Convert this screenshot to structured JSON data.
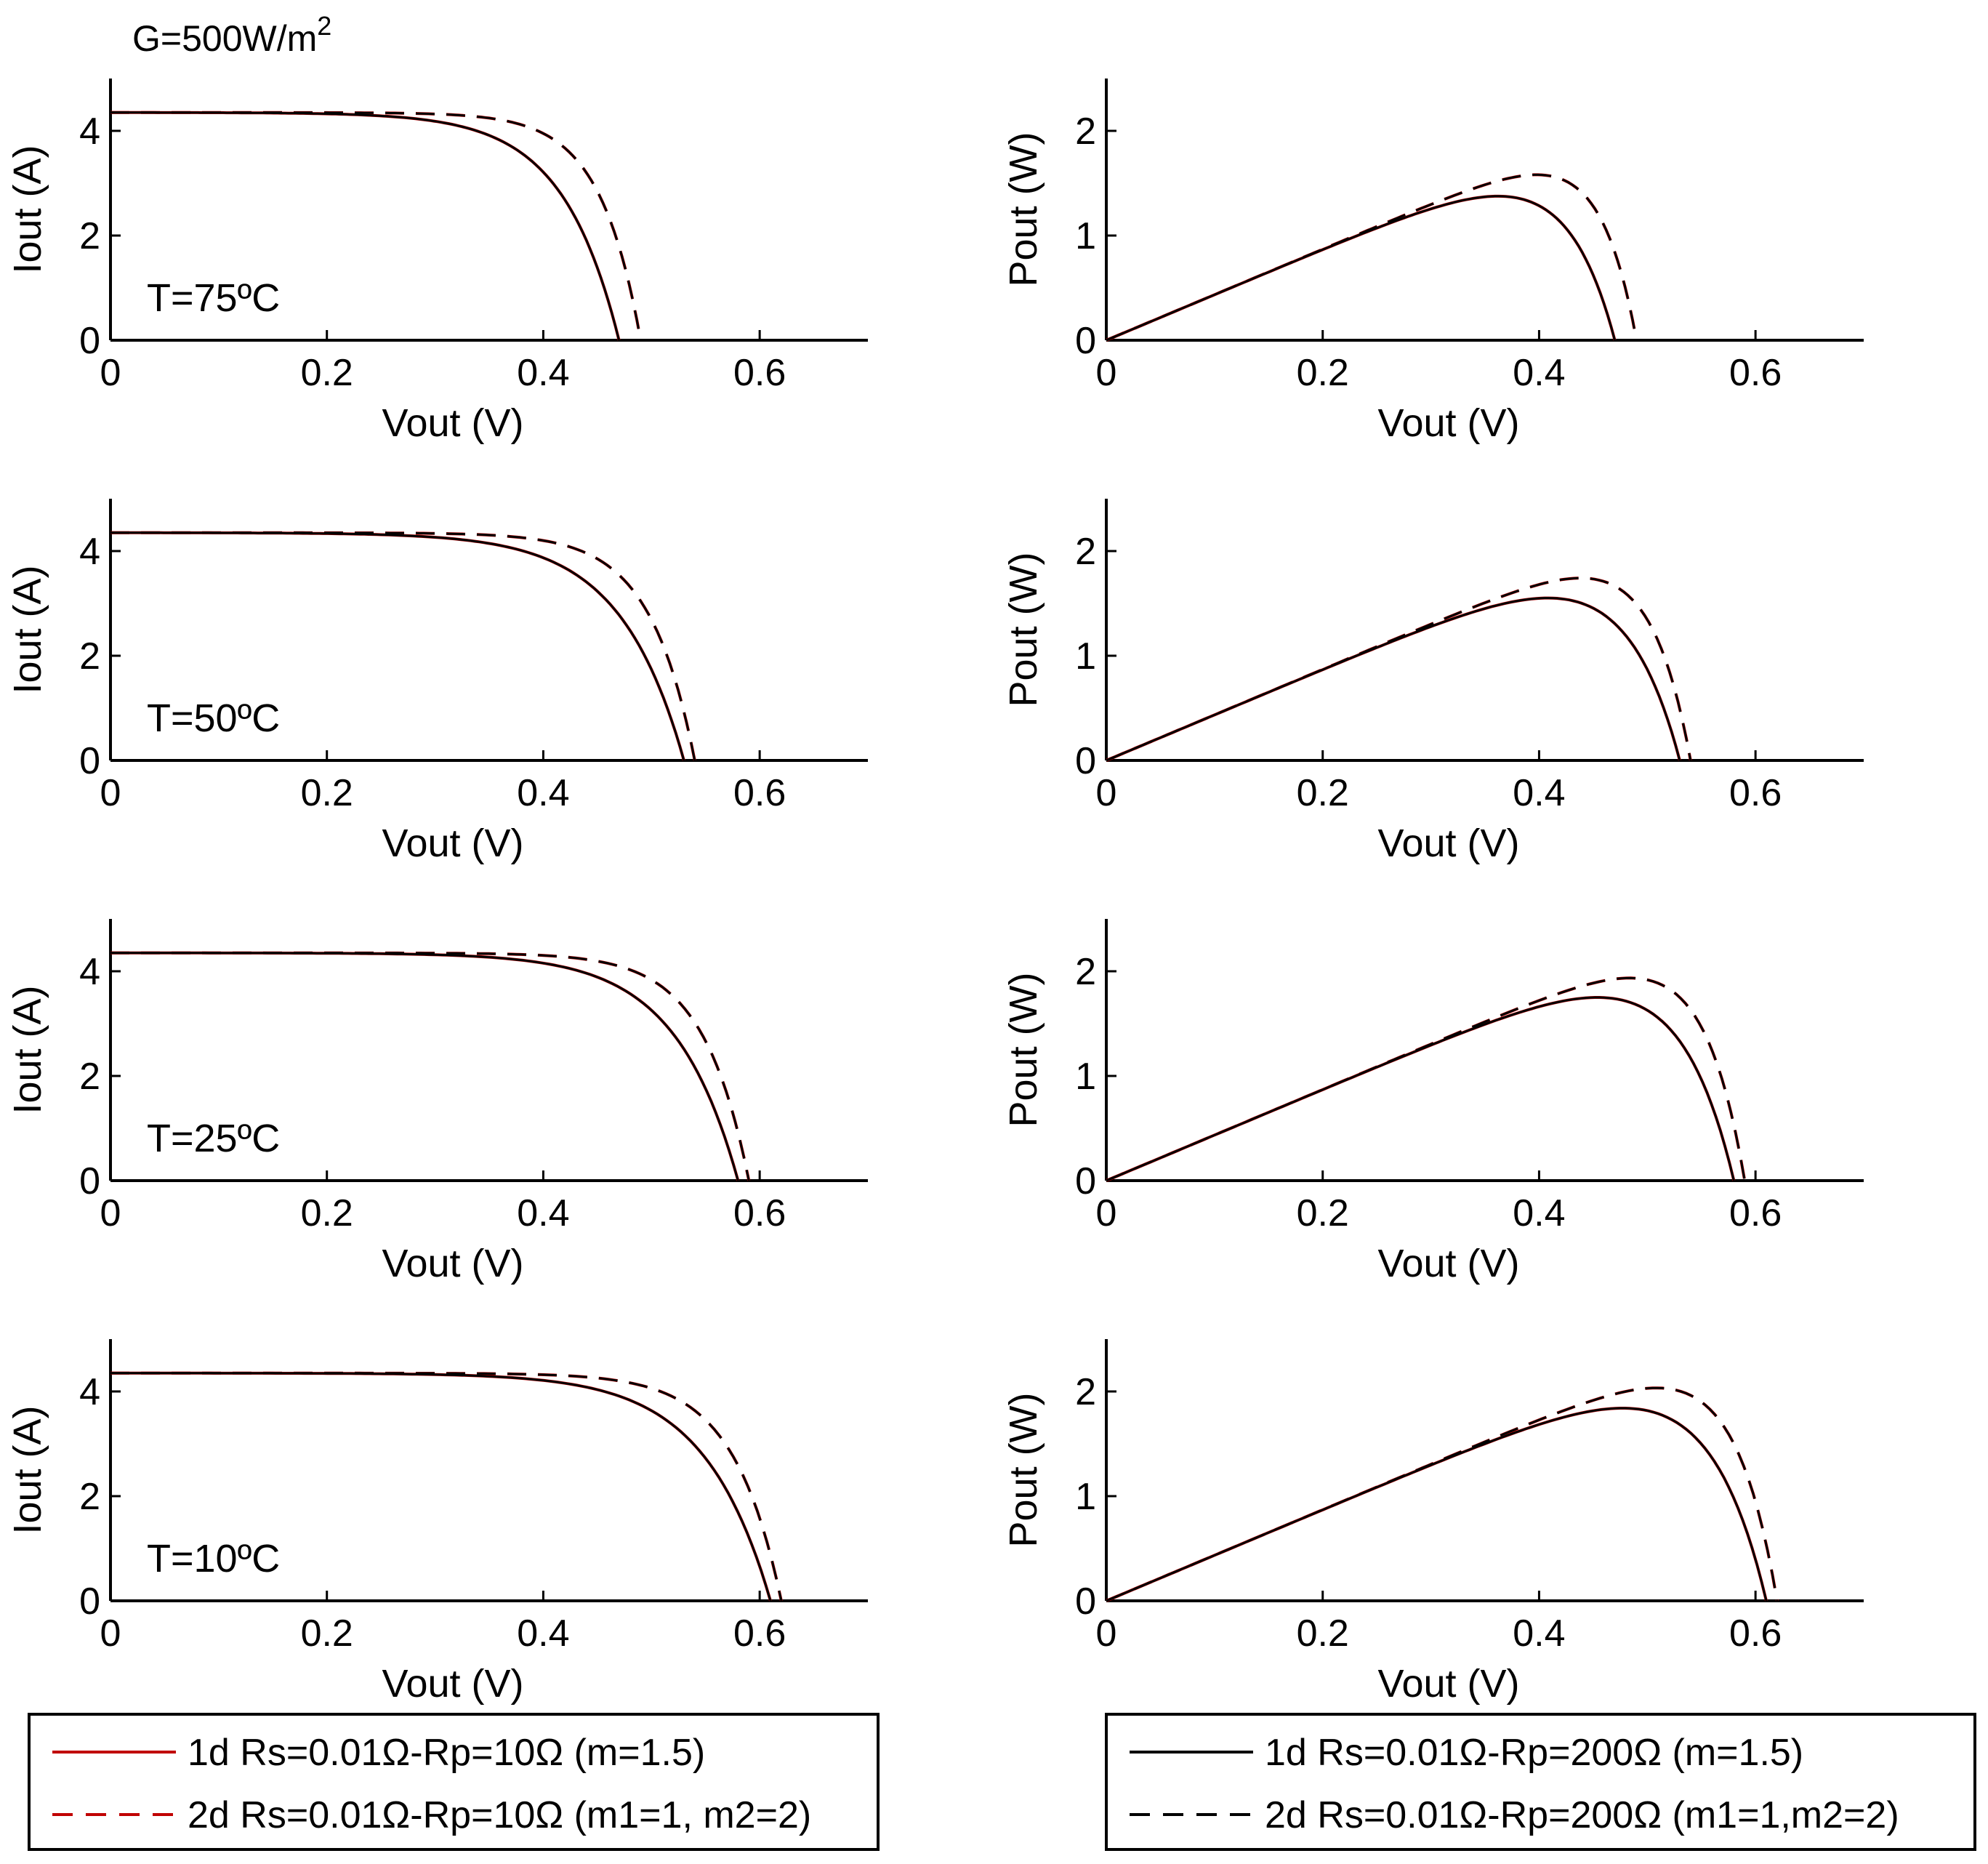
{
  "figure_title": "G=500W/m",
  "figure_title_sup": "2",
  "legends": [
    {
      "entries": [
        {
          "label": "1d Rs=0.01Ω-Rp=10Ω (m=1.5)",
          "color": "#c00000",
          "dash": "solid"
        },
        {
          "label": "2d Rs=0.01Ω-Rp=10Ω (m1=1, m2=2)",
          "color": "#c00000",
          "dash": "dashed"
        }
      ]
    },
    {
      "entries": [
        {
          "label": "1d Rs=0.01Ω-Rp=200Ω (m=1.5)",
          "color": "#000000",
          "dash": "solid"
        },
        {
          "label": "2d Rs=0.01Ω-Rp=200Ω (m1=1,m2=2)",
          "color": "#000000",
          "dash": "dashed"
        }
      ]
    }
  ],
  "chart_data": [
    {
      "type": "line",
      "id": "iv-75",
      "title": "",
      "annotation": "T=75ºC",
      "xlabel": "Vout (V)",
      "ylabel": "Iout (A)",
      "xlim": [
        0,
        0.7
      ],
      "ylim": [
        0,
        5
      ],
      "xticks": [
        0,
        0.2,
        0.4,
        0.6
      ],
      "yticks": [
        0,
        2,
        4
      ],
      "isc": 4.35,
      "voc1": 0.47,
      "voc2": 0.49,
      "k1": 9,
      "k2": 13
    },
    {
      "type": "line",
      "id": "pv-75",
      "title": "",
      "annotation": "",
      "xlabel": "Vout (V)",
      "ylabel": "Pout (W)",
      "xlim": [
        0,
        0.7
      ],
      "ylim": [
        0,
        2.5
      ],
      "xticks": [
        0,
        0.2,
        0.4,
        0.6
      ],
      "yticks": [
        0,
        1,
        2
      ],
      "isc": 4.35,
      "voc1": 0.47,
      "voc2": 0.49,
      "k1": 9,
      "k2": 13
    },
    {
      "type": "line",
      "id": "iv-50",
      "title": "",
      "annotation": "T=50ºC",
      "xlabel": "Vout (V)",
      "ylabel": "Iout (A)",
      "xlim": [
        0,
        0.7
      ],
      "ylim": [
        0,
        5
      ],
      "xticks": [
        0,
        0.2,
        0.4,
        0.6
      ],
      "yticks": [
        0,
        2,
        4
      ],
      "isc": 4.35,
      "voc1": 0.53,
      "voc2": 0.54,
      "k1": 9,
      "k2": 13
    },
    {
      "type": "line",
      "id": "pv-50",
      "title": "",
      "annotation": "",
      "xlabel": "Vout (V)",
      "ylabel": "Pout (W)",
      "xlim": [
        0,
        0.7
      ],
      "ylim": [
        0,
        2.5
      ],
      "xticks": [
        0,
        0.2,
        0.4,
        0.6
      ],
      "yticks": [
        0,
        1,
        2
      ],
      "isc": 4.35,
      "voc1": 0.53,
      "voc2": 0.54,
      "k1": 9,
      "k2": 13
    },
    {
      "type": "line",
      "id": "iv-25",
      "title": "",
      "annotation": "T=25ºC",
      "xlabel": "Vout (V)",
      "ylabel": "Iout (A)",
      "xlim": [
        0,
        0.7
      ],
      "ylim": [
        0,
        5
      ],
      "xticks": [
        0,
        0.2,
        0.4,
        0.6
      ],
      "yticks": [
        0,
        2,
        4
      ],
      "isc": 4.35,
      "voc1": 0.58,
      "voc2": 0.59,
      "k1": 10,
      "k2": 14
    },
    {
      "type": "line",
      "id": "pv-25",
      "title": "",
      "annotation": "",
      "xlabel": "Vout (V)",
      "ylabel": "Pout (W)",
      "xlim": [
        0,
        0.7
      ],
      "ylim": [
        0,
        2.5
      ],
      "xticks": [
        0,
        0.2,
        0.4,
        0.6
      ],
      "yticks": [
        0,
        1,
        2
      ],
      "isc": 4.35,
      "voc1": 0.58,
      "voc2": 0.59,
      "k1": 10,
      "k2": 14
    },
    {
      "type": "line",
      "id": "iv-10",
      "title": "",
      "annotation": "T=10ºC",
      "xlabel": "Vout (V)",
      "ylabel": "Iout (A)",
      "xlim": [
        0,
        0.7
      ],
      "ylim": [
        0,
        5
      ],
      "xticks": [
        0,
        0.2,
        0.4,
        0.6
      ],
      "yticks": [
        0,
        2,
        4
      ],
      "isc": 4.35,
      "voc1": 0.61,
      "voc2": 0.62,
      "k1": 10,
      "k2": 14
    },
    {
      "type": "line",
      "id": "pv-10",
      "title": "",
      "annotation": "",
      "xlabel": "Vout (V)",
      "ylabel": "Pout (W)",
      "xlim": [
        0,
        0.7
      ],
      "ylim": [
        0,
        2.5
      ],
      "xticks": [
        0,
        0.2,
        0.4,
        0.6
      ],
      "yticks": [
        0,
        1,
        2
      ],
      "isc": 4.35,
      "voc1": 0.61,
      "voc2": 0.62,
      "k1": 10,
      "k2": 14
    }
  ]
}
